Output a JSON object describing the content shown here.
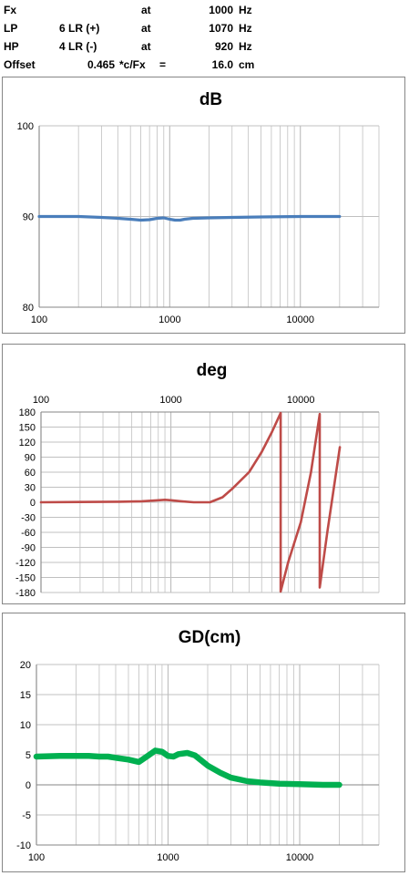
{
  "header": {
    "rows": [
      {
        "label": "Fx",
        "param": "",
        "at": "at",
        "value": "1000",
        "unit": "Hz"
      },
      {
        "label": "LP",
        "param": "6 LR (+)",
        "at": "at",
        "value": "1070",
        "unit": "Hz"
      },
      {
        "label": "HP",
        "param": "4 LR (-)",
        "at": "at",
        "value": "920",
        "unit": "Hz"
      },
      {
        "label": "Offset",
        "param": "0.465",
        "at": "*c/Fx",
        "eq": "=",
        "value": "16.0",
        "unit": "cm"
      }
    ]
  },
  "colors": {
    "db_line": "#4a7ebb",
    "deg_line": "#be4b48",
    "gd_line": "#00b050",
    "grid": "#c0c0c0",
    "axis": "#868686"
  },
  "chart_data": [
    {
      "type": "line",
      "title": "dB",
      "xscale": "log",
      "xlim": [
        100,
        40000
      ],
      "ylim": [
        80,
        100
      ],
      "yticks": [
        80,
        90,
        100
      ],
      "xticks": [
        100,
        1000,
        10000
      ],
      "x_axis_position": "bottom",
      "series": [
        {
          "x": [
            100,
            200,
            300,
            400,
            500,
            600,
            700,
            800,
            900,
            1000,
            1100,
            1200,
            1300,
            1500,
            2000,
            3000,
            5000,
            10000,
            20000
          ],
          "y": [
            90,
            90,
            89.9,
            89.8,
            89.7,
            89.6,
            89.65,
            89.8,
            89.85,
            89.7,
            89.6,
            89.6,
            89.7,
            89.8,
            89.85,
            89.9,
            89.95,
            90,
            90
          ]
        }
      ]
    },
    {
      "type": "line",
      "title": "deg",
      "xscale": "log",
      "xlim": [
        100,
        40000
      ],
      "ylim": [
        -180,
        180
      ],
      "yticks": [
        -180,
        -150,
        -120,
        -90,
        -60,
        -30,
        0,
        30,
        60,
        90,
        120,
        150,
        180
      ],
      "xticks": [
        100,
        1000,
        10000
      ],
      "x_axis_position": "top",
      "series": [
        {
          "x": [
            100,
            200,
            400,
            600,
            800,
            900,
            1000,
            1200,
            1500,
            2000,
            2500,
            3000,
            4000,
            5000,
            6000,
            7000,
            7000.1,
            8000,
            10000,
            12000,
            14000,
            14000.1,
            16000,
            18000,
            20000
          ],
          "y": [
            0,
            0.5,
            1,
            2,
            4,
            5,
            4,
            2,
            0,
            0,
            10,
            28,
            60,
            100,
            140,
            178,
            -178,
            -120,
            -40,
            60,
            176,
            -170,
            -60,
            30,
            110
          ]
        }
      ]
    },
    {
      "type": "line",
      "title": "GD(cm)",
      "xscale": "log",
      "xlim": [
        100,
        40000
      ],
      "ylim": [
        -10,
        20
      ],
      "yticks": [
        -10,
        -5,
        0,
        5,
        10,
        15,
        20
      ],
      "xticks": [
        100,
        1000,
        10000
      ],
      "x_axis_position": "bottom",
      "series": [
        {
          "x": [
            100,
            150,
            200,
            250,
            300,
            350,
            400,
            500,
            600,
            700,
            800,
            900,
            1000,
            1100,
            1200,
            1400,
            1600,
            1800,
            2000,
            2500,
            3000,
            4000,
            5000,
            7000,
            10000,
            15000,
            20000
          ],
          "y": [
            4.7,
            4.8,
            4.8,
            4.8,
            4.7,
            4.7,
            4.5,
            4.2,
            3.8,
            4.8,
            5.7,
            5.5,
            4.8,
            4.7,
            5.1,
            5.3,
            4.9,
            4.0,
            3.2,
            2.0,
            1.2,
            0.6,
            0.4,
            0.2,
            0.1,
            0.0,
            0.0
          ]
        }
      ]
    }
  ]
}
